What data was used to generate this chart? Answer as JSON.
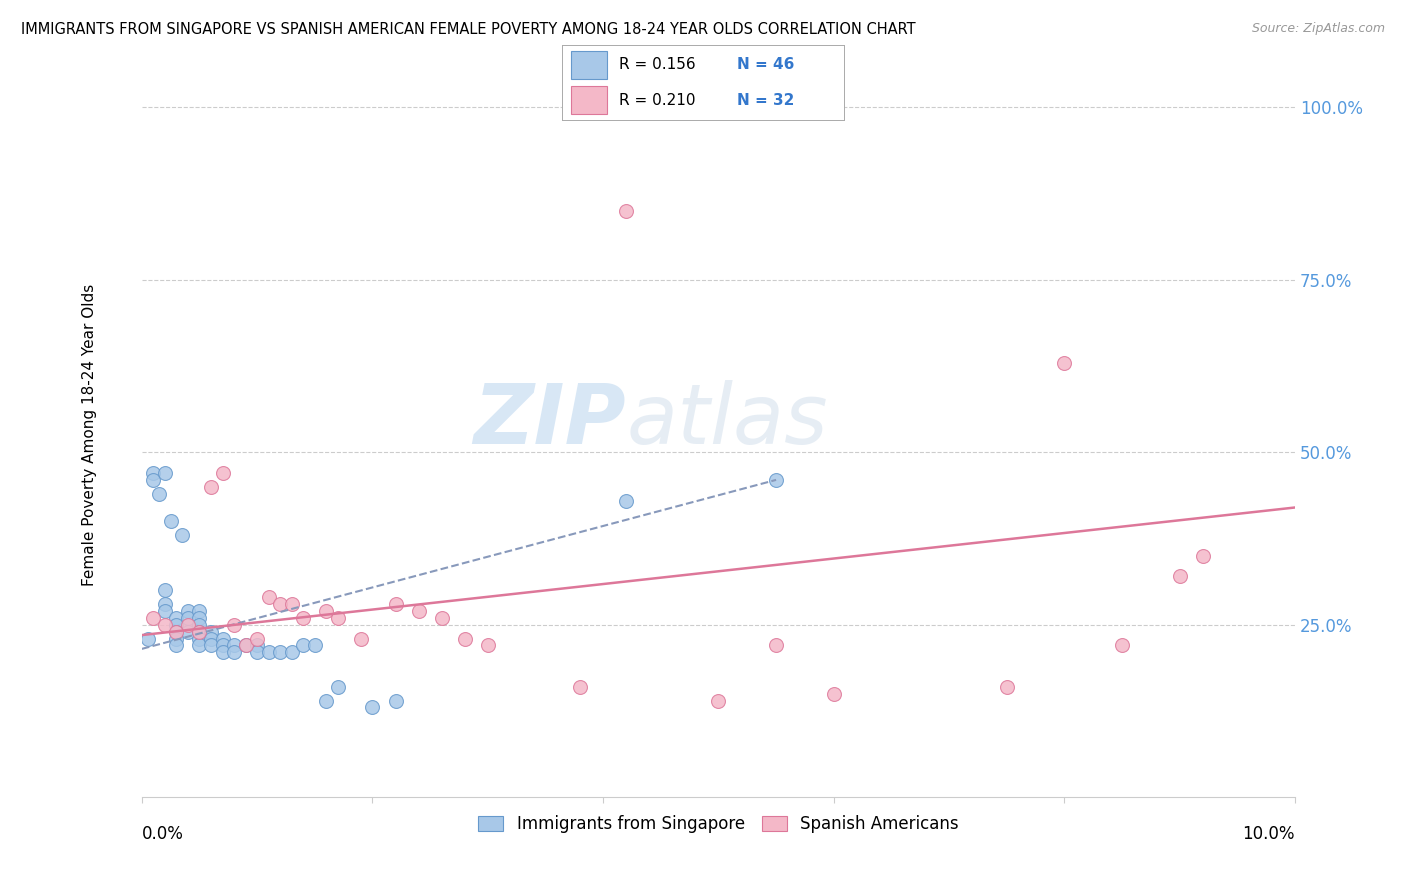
{
  "title": "IMMIGRANTS FROM SINGAPORE VS SPANISH AMERICAN FEMALE POVERTY AMONG 18-24 YEAR OLDS CORRELATION CHART",
  "source": "Source: ZipAtlas.com",
  "ylabel": "Female Poverty Among 18-24 Year Olds",
  "legend1_r": "R = 0.156",
  "legend1_n": "N = 46",
  "legend2_r": "R = 0.210",
  "legend2_n": "N = 32",
  "color_blue": "#a8c8e8",
  "color_blue_edge": "#6699cc",
  "color_pink": "#f4b8c8",
  "color_pink_edge": "#dd7799",
  "color_blue_line": "#8899bb",
  "color_pink_line": "#dd7799",
  "watermark_zip": "ZIP",
  "watermark_atlas": "atlas",
  "ytick_vals": [
    0.25,
    0.5,
    0.75,
    1.0
  ],
  "ytick_labels": [
    "25.0%",
    "50.0%",
    "75.0%",
    "100.0%"
  ],
  "xlim": [
    0.0,
    0.1
  ],
  "ylim": [
    0.0,
    1.05
  ],
  "blue_scatter_x": [
    0.0005,
    0.001,
    0.001,
    0.0015,
    0.002,
    0.002,
    0.002,
    0.002,
    0.0025,
    0.003,
    0.003,
    0.003,
    0.003,
    0.003,
    0.0035,
    0.004,
    0.004,
    0.004,
    0.005,
    0.005,
    0.005,
    0.005,
    0.005,
    0.005,
    0.006,
    0.006,
    0.006,
    0.007,
    0.007,
    0.007,
    0.008,
    0.008,
    0.009,
    0.01,
    0.01,
    0.011,
    0.012,
    0.013,
    0.014,
    0.015,
    0.016,
    0.017,
    0.02,
    0.022,
    0.042,
    0.055
  ],
  "blue_scatter_y": [
    0.23,
    0.47,
    0.46,
    0.44,
    0.47,
    0.3,
    0.28,
    0.27,
    0.4,
    0.26,
    0.25,
    0.24,
    0.23,
    0.22,
    0.38,
    0.27,
    0.26,
    0.24,
    0.27,
    0.26,
    0.25,
    0.24,
    0.23,
    0.22,
    0.24,
    0.23,
    0.22,
    0.23,
    0.22,
    0.21,
    0.22,
    0.21,
    0.22,
    0.22,
    0.21,
    0.21,
    0.21,
    0.21,
    0.22,
    0.22,
    0.14,
    0.16,
    0.13,
    0.14,
    0.43,
    0.46
  ],
  "pink_scatter_x": [
    0.001,
    0.002,
    0.003,
    0.004,
    0.005,
    0.006,
    0.007,
    0.008,
    0.009,
    0.01,
    0.011,
    0.012,
    0.013,
    0.014,
    0.016,
    0.017,
    0.019,
    0.022,
    0.024,
    0.026,
    0.028,
    0.03,
    0.038,
    0.042,
    0.05,
    0.055,
    0.06,
    0.075,
    0.08,
    0.085,
    0.09,
    0.092
  ],
  "pink_scatter_y": [
    0.26,
    0.25,
    0.24,
    0.25,
    0.24,
    0.45,
    0.47,
    0.25,
    0.22,
    0.23,
    0.29,
    0.28,
    0.28,
    0.26,
    0.27,
    0.26,
    0.23,
    0.28,
    0.27,
    0.26,
    0.23,
    0.22,
    0.16,
    0.85,
    0.14,
    0.22,
    0.15,
    0.16,
    0.63,
    0.22,
    0.32,
    0.35
  ],
  "blue_trend_x": [
    0.0,
    0.055
  ],
  "blue_trend_y": [
    0.215,
    0.46
  ],
  "pink_trend_x": [
    0.0,
    0.1
  ],
  "pink_trend_y": [
    0.235,
    0.42
  ]
}
